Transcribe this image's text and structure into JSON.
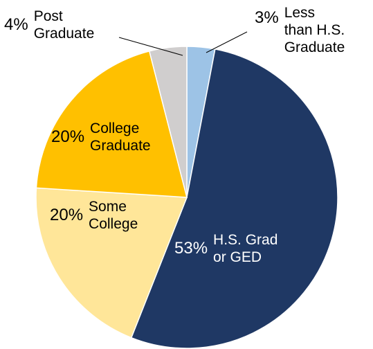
{
  "chart_data": {
    "type": "pie",
    "categories": [
      "Less\nthan H.S.\nGraduate",
      "H.S. Grad\nor GED",
      "Some\nCollege",
      "College\nGraduate",
      "Post\nGraduate"
    ],
    "values": [
      3,
      53,
      20,
      20,
      4
    ],
    "value_labels": [
      "3%",
      "53%",
      "20%",
      "20%",
      "4%"
    ],
    "colors": [
      "#9dc3e6",
      "#1f3864",
      "#ffe699",
      "#ffc000",
      "#d0cece"
    ]
  }
}
